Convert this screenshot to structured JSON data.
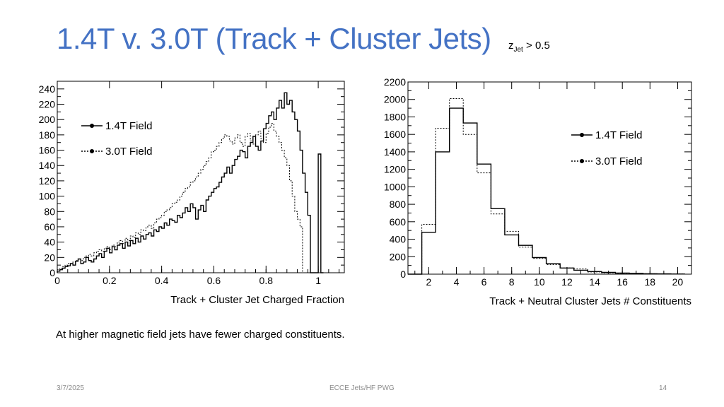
{
  "slide": {
    "title": "1.4T v. 3.0T (Track + Cluster Jets)",
    "annotation_main": "z",
    "annotation_sub": "Jet",
    "annotation_rest": " > 0.5",
    "caption": "At higher magnetic field jets have fewer charged constituents.",
    "footer_date": "3/7/2025",
    "footer_center": "ECCE Jets/HF PWG",
    "footer_page": "14",
    "colors": {
      "title": "#4472C4",
      "footer": "#8c8c8c"
    }
  },
  "chart_data": [
    {
      "type": "histogram",
      "xlabel": "Track + Cluster Jet Charged Fraction",
      "ylabel": "",
      "xlim": [
        0,
        1.1
      ],
      "ylim": [
        0,
        250
      ],
      "xticks": [
        0,
        0.2,
        0.4,
        0.6,
        0.8,
        1
      ],
      "xtick_labels": [
        "0",
        "0.2",
        "0.4",
        "0.6",
        "0.8",
        "1"
      ],
      "yticks": [
        0,
        20,
        40,
        60,
        80,
        100,
        120,
        140,
        160,
        180,
        200,
        220,
        240
      ],
      "ytick_labels": [
        "0",
        "20",
        "40",
        "60",
        "80",
        "100",
        "120",
        "140",
        "160",
        "180",
        "200",
        "220",
        "240"
      ],
      "legend_position": "upper-left",
      "bin_start": 0,
      "bin_width": 0.01,
      "series": [
        {
          "name": "1.4T Field",
          "style": "solid",
          "values": [
            2,
            4,
            6,
            8,
            9,
            12,
            10,
            15,
            18,
            12,
            14,
            20,
            16,
            14,
            18,
            22,
            25,
            20,
            28,
            32,
            26,
            34,
            30,
            36,
            38,
            32,
            40,
            35,
            42,
            38,
            45,
            40,
            48,
            44,
            50,
            52,
            48,
            56,
            54,
            60,
            58,
            65,
            62,
            70,
            68,
            66,
            75,
            72,
            78,
            85,
            80,
            90,
            85,
            70,
            82,
            88,
            80,
            95,
            100,
            105,
            110,
            112,
            118,
            125,
            130,
            138,
            130,
            140,
            148,
            152,
            160,
            158,
            150,
            165,
            170,
            178,
            165,
            160,
            172,
            188,
            195,
            205,
            210,
            200,
            215,
            225,
            215,
            235,
            220,
            225,
            210,
            200,
            185,
            160,
            130,
            105,
            75,
            0,
            0,
            0,
            155,
            0
          ]
        },
        {
          "name": "3.0T Field",
          "style": "dotted",
          "values": [
            4,
            6,
            8,
            10,
            12,
            12,
            14,
            16,
            18,
            16,
            20,
            22,
            24,
            22,
            26,
            28,
            30,
            28,
            32,
            34,
            30,
            36,
            34,
            40,
            42,
            38,
            45,
            42,
            48,
            46,
            52,
            50,
            56,
            55,
            60,
            62,
            58,
            65,
            70,
            72,
            75,
            80,
            82,
            85,
            90,
            92,
            95,
            100,
            105,
            110,
            112,
            118,
            120,
            125,
            130,
            135,
            140,
            145,
            150,
            158,
            160,
            165,
            170,
            175,
            180,
            178,
            172,
            168,
            176,
            180,
            170,
            165,
            178,
            182,
            172,
            168,
            180,
            185,
            175,
            170,
            182,
            190,
            195,
            185,
            178,
            170,
            160,
            150,
            140,
            120,
            100,
            80,
            70,
            60,
            0
          ]
        }
      ]
    },
    {
      "type": "histogram",
      "xlabel": "Track + Neutral Cluster Jets # Constituents",
      "ylabel": "",
      "xlim": [
        0.5,
        21
      ],
      "ylim": [
        0,
        2200
      ],
      "xticks": [
        2,
        4,
        6,
        8,
        10,
        12,
        14,
        16,
        18,
        20
      ],
      "xtick_labels": [
        "2",
        "4",
        "6",
        "8",
        "10",
        "12",
        "14",
        "16",
        "18",
        "20"
      ],
      "yticks": [
        0,
        200,
        400,
        600,
        800,
        1000,
        1200,
        1400,
        1600,
        1800,
        2000,
        2200
      ],
      "ytick_labels": [
        "0",
        "200",
        "400",
        "600",
        "800",
        "1000",
        "1200",
        "1400",
        "1600",
        "1800",
        "2000",
        "2200"
      ],
      "legend_position": "right",
      "bin_start": 0.5,
      "bin_width": 1,
      "series": [
        {
          "name": "1.4T Field",
          "style": "solid",
          "values": [
            0,
            480,
            1400,
            1900,
            1730,
            1260,
            750,
            450,
            330,
            190,
            120,
            70,
            45,
            30,
            20,
            12,
            8,
            5,
            3,
            2
          ]
        },
        {
          "name": "3.0T Field",
          "style": "dotted",
          "values": [
            0,
            570,
            1670,
            2010,
            1600,
            1160,
            690,
            490,
            310,
            180,
            110,
            70,
            60,
            25,
            15,
            10,
            8,
            5,
            3,
            2
          ]
        }
      ]
    }
  ]
}
